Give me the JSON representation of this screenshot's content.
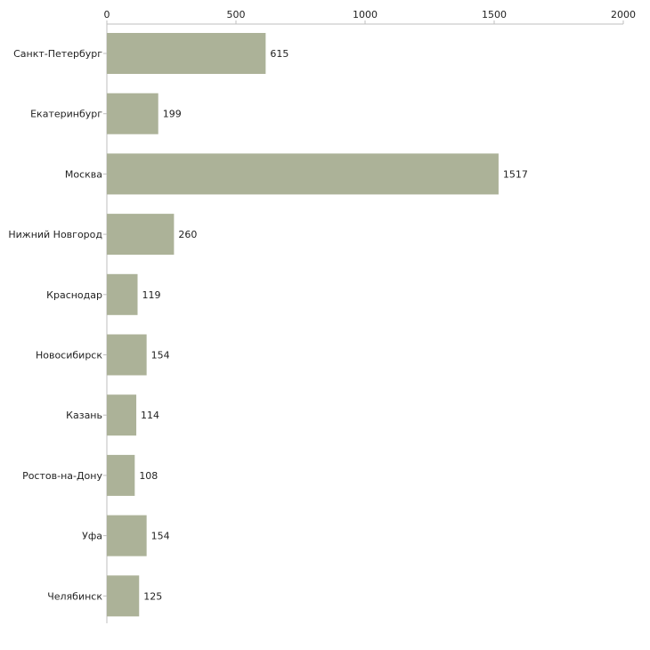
{
  "colors": {
    "bar": "#acb298",
    "axis": "#bfbfbf",
    "text": "#222222",
    "background": "#ffffff"
  },
  "chart_data": {
    "type": "bar",
    "orientation": "horizontal",
    "title": "",
    "xlabel": "",
    "ylabel": "",
    "xlim": [
      0,
      2000
    ],
    "ticks": [
      0,
      500,
      1000,
      1500,
      2000
    ],
    "tick_labels": [
      "0",
      "500",
      "1000",
      "1500",
      "2000"
    ],
    "grid": false,
    "legend": "none",
    "categories": [
      "Санкт-Петербург",
      "Екатеринбург",
      "Москва",
      "Нижний Новгород",
      "Краснодар",
      "Новосибирск",
      "Казань",
      "Ростов-на-Дону",
      "Уфа",
      "Челябинск"
    ],
    "values": [
      615,
      199,
      1517,
      260,
      119,
      154,
      114,
      108,
      154,
      125
    ],
    "value_labels": [
      "615",
      "199",
      "1517",
      "260",
      "119",
      "154",
      "114",
      "108",
      "154",
      "125"
    ]
  }
}
